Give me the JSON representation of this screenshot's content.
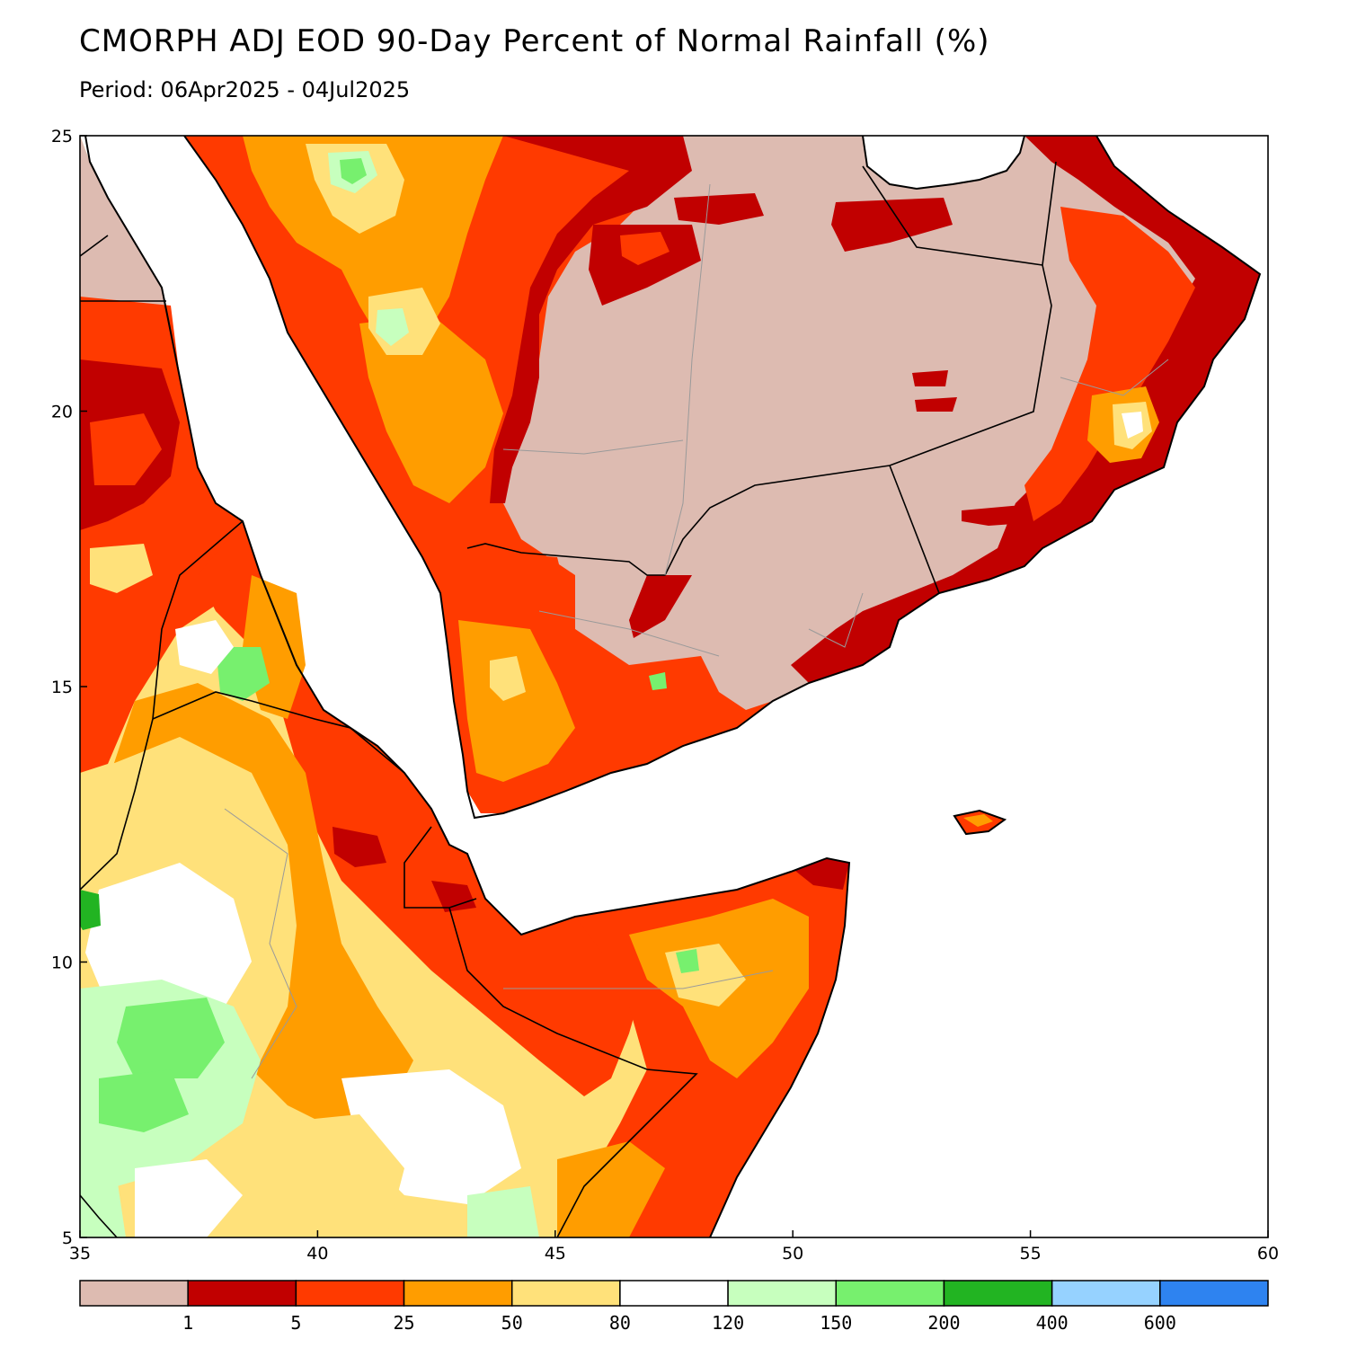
{
  "title": "CMORPH ADJ EOD 90-Day Percent of Normal Rainfall (%)",
  "subtitle": "Period: 06Apr2025 - 04Jul2025",
  "map": {
    "lon_range": [
      35,
      60
    ],
    "lat_range": [
      5,
      25
    ],
    "x_ticks": [
      "35",
      "40",
      "45",
      "50",
      "55",
      "60"
    ],
    "y_ticks": [
      "5",
      "10",
      "15",
      "20",
      "25"
    ],
    "regions": [
      "Arabian Peninsula",
      "Red Sea",
      "Gulf of Aden",
      "Horn of Africa"
    ]
  },
  "legend": {
    "colors": [
      "#ddbbb1",
      "#c10000",
      "#ff3a00",
      "#ff9d00",
      "#ffe17a",
      "#ffffff",
      "#c7ffbe",
      "#77f06e",
      "#22b422",
      "#96d2ff",
      "#2e83f0"
    ],
    "labels": [
      "1",
      "5",
      "25",
      "50",
      "80",
      "120",
      "150",
      "200",
      "400",
      "600"
    ]
  },
  "palette": {
    "dry": "#ddbbb1",
    "deep_red": "#c10000",
    "red_orange": "#ff3a00",
    "orange": "#ff9d00",
    "light_yellow": "#ffe17a",
    "near_normal": "#ffffff",
    "light_green": "#c7ffbe",
    "green": "#77f06e",
    "dark_green": "#22b422",
    "sea": "#ffffff"
  }
}
